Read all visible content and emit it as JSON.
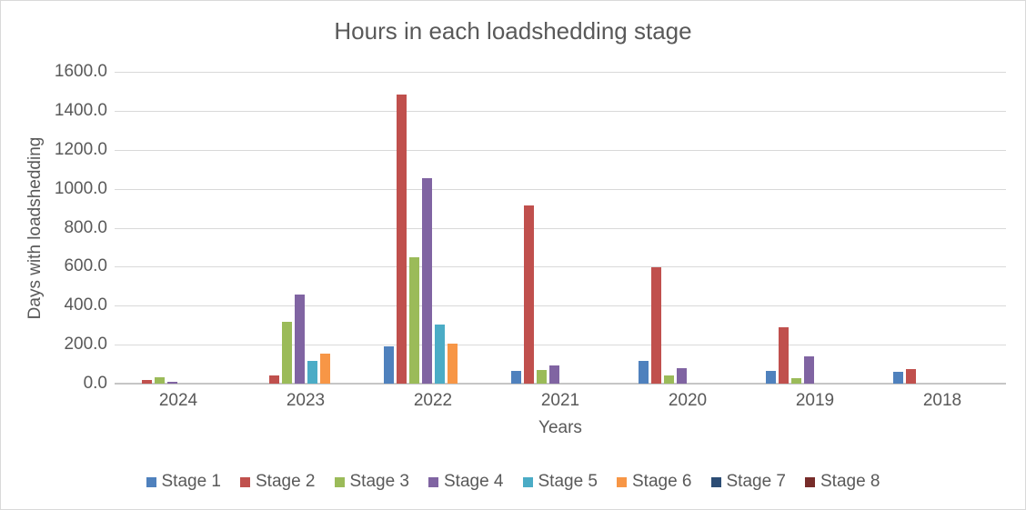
{
  "chart_data": {
    "type": "bar",
    "title": "Hours in each loadshedding stage",
    "xlabel": "Years",
    "ylabel": "Days with loadshedding",
    "categories": [
      "2024",
      "2023",
      "2022",
      "2021",
      "2020",
      "2019",
      "2018"
    ],
    "series": [
      {
        "name": "Stage 1",
        "color": "#4F81BD",
        "values": [
          0,
          0,
          190,
          67,
          118,
          65,
          61
        ]
      },
      {
        "name": "Stage 2",
        "color": "#C0504D",
        "values": [
          18,
          44,
          1483,
          912,
          598,
          287,
          76
        ]
      },
      {
        "name": "Stage 3",
        "color": "#9BBB59",
        "values": [
          31,
          315,
          650,
          70,
          42,
          30,
          0
        ]
      },
      {
        "name": "Stage 4",
        "color": "#8064A2",
        "values": [
          8,
          456,
          1056,
          92,
          81,
          142,
          0
        ]
      },
      {
        "name": "Stage 5",
        "color": "#4BACC6",
        "values": [
          0,
          117,
          304,
          0,
          0,
          0,
          0
        ]
      },
      {
        "name": "Stage 6",
        "color": "#F79646",
        "values": [
          0,
          155,
          206,
          0,
          0,
          0,
          0
        ]
      },
      {
        "name": "Stage 7",
        "color": "#2C4D75",
        "values": [
          0,
          0,
          0,
          0,
          0,
          0,
          0
        ]
      },
      {
        "name": "Stage 8",
        "color": "#772C2A",
        "values": [
          0,
          0,
          0,
          0,
          0,
          0,
          0
        ]
      }
    ],
    "ylim": [
      0,
      1600
    ],
    "y_tick_step": 200,
    "y_tick_labels": [
      "0.0",
      "200.0",
      "400.0",
      "600.0",
      "800.0",
      "1000.0",
      "1200.0",
      "1400.0",
      "1600.0"
    ],
    "grid": true,
    "legend_position": "bottom",
    "colors": {
      "text": "#595959",
      "gridline": "#D9D9D9",
      "axis_line": "#C6C6C6",
      "background": "#FFFFFF",
      "frame_border": "#D9D9D9"
    }
  }
}
